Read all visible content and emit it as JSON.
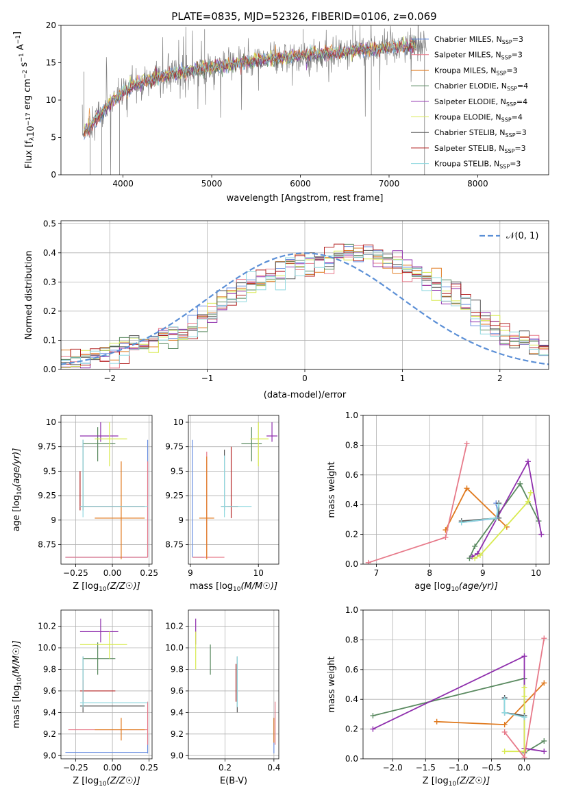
{
  "title": "PLATE=0835, MJD=52326, FIBERID=0106, z=0.069",
  "colors": {
    "Chabrier MILES": "#6a8fe0",
    "Salpeter MILES": "#e77a8a",
    "Kroupa MILES": "#e07a1f",
    "Chabrier ELODIE": "#5a8a60",
    "Salpeter ELODIE": "#8f2fad",
    "Kroupa ELODIE": "#d8ea50",
    "Chabrier STELIB": "#555555",
    "Salpeter STELIB": "#b22222",
    "Kroupa STELIB": "#8fd8df",
    "data": "#808080",
    "gaussian": "#5b8fd6"
  },
  "legend": [
    {
      "pre": "Chabrier MILES, N",
      "sub": "SSP",
      "post": "=3"
    },
    {
      "pre": "Salpeter MILES, N",
      "sub": "SSP",
      "post": "=3"
    },
    {
      "pre": "Kroupa MILES, N",
      "sub": "SSP",
      "post": "=3"
    },
    {
      "pre": "Chabrier ELODIE, N",
      "sub": "SSP",
      "post": "=4"
    },
    {
      "pre": "Salpeter ELODIE, N",
      "sub": "SSP",
      "post": "=4"
    },
    {
      "pre": "Kroupa ELODIE, N",
      "sub": "SSP",
      "post": "=4"
    },
    {
      "pre": "Chabrier STELIB, N",
      "sub": "SSP",
      "post": "=3"
    },
    {
      "pre": "Salpeter STELIB, N",
      "sub": "SSP",
      "post": "=3"
    },
    {
      "pre": "Kroupa STELIB, N",
      "sub": "SSP",
      "post": "=3"
    }
  ],
  "hist_legend": "𝒩(0, 1)",
  "chart_data": [
    {
      "id": "spectrum",
      "type": "line",
      "xlabel": "wavelength [Angstrom, rest frame]",
      "ylabel": "Flux [f_λ 10^-17 erg cm^-2 s^-1 A^-1]",
      "xlim": [
        3300,
        8800
      ],
      "ylim": [
        0,
        20
      ],
      "xticks": [
        4000,
        5000,
        6000,
        7000,
        8000
      ],
      "yticks": [
        0,
        5,
        10,
        15,
        20
      ],
      "continuum": {
        "x": [
          3550,
          3700,
          3850,
          4000,
          4200,
          4500,
          5000,
          5500,
          6000,
          6500,
          7000,
          7400
        ],
        "y": [
          5.5,
          7.5,
          9.5,
          11.0,
          12.3,
          13.4,
          14.4,
          15.3,
          15.9,
          16.5,
          17.0,
          17.3
        ]
      },
      "spikes": [
        {
          "x": 3560,
          "y": 13.8
        },
        {
          "x": 3630,
          "y": 0
        },
        {
          "x": 3760,
          "y": 0
        },
        {
          "x": 3960,
          "y": 0
        },
        {
          "x": 4920,
          "y": 19.5
        },
        {
          "x": 6030,
          "y": 19.5
        },
        {
          "x": 6590,
          "y": 20
        },
        {
          "x": 6800,
          "y": 0
        },
        {
          "x": 7400,
          "y": 0
        }
      ],
      "grid": false
    },
    {
      "id": "residual_hist",
      "type": "histogram",
      "xlabel": "(data-model)/error",
      "ylabel": "Normed distribution",
      "xlim": [
        -2.5,
        2.5
      ],
      "ylim": [
        0,
        0.51
      ],
      "xticks": [
        -2,
        -1,
        0,
        1,
        2
      ],
      "yticks": [
        0.0,
        0.1,
        0.2,
        0.3,
        0.4,
        0.5
      ],
      "bin_width": 0.1,
      "bin_start": -2.5,
      "envelope": [
        0.03,
        0.035,
        0.05,
        0.06,
        0.06,
        0.07,
        0.08,
        0.085,
        0.09,
        0.1,
        0.11,
        0.12,
        0.13,
        0.15,
        0.17,
        0.19,
        0.22,
        0.25,
        0.28,
        0.3,
        0.31,
        0.32,
        0.33,
        0.35,
        0.36,
        0.37,
        0.38,
        0.39,
        0.4,
        0.4,
        0.4,
        0.4,
        0.39,
        0.38,
        0.37,
        0.35,
        0.33,
        0.31,
        0.29,
        0.27,
        0.25,
        0.22,
        0.19,
        0.16,
        0.14,
        0.12,
        0.11,
        0.1,
        0.08,
        0.07,
        0.06,
        0.05,
        0.05,
        0.045,
        0.04,
        0.035,
        0.03,
        0.03,
        0.025,
        0.02
      ],
      "grid": true
    },
    {
      "id": "age_vs_Z",
      "type": "errorbar",
      "xlabel": "Z [log10(Z/Z☉)]",
      "ylabel": "age [log10(age/yr)]",
      "xlim": [
        -0.35,
        0.27
      ],
      "ylim": [
        8.55,
        10.07
      ],
      "xticks": [
        -0.25,
        0.0,
        0.25
      ],
      "yticks": [
        8.75,
        9.0,
        9.25,
        9.5,
        9.75,
        10.0
      ],
      "xticklabels": [
        "−0.25",
        "0.00",
        "0.25"
      ],
      "points": [
        {
          "c": "Chabrier MILES",
          "x": 0.24,
          "y": 8.62,
          "xl": -0.32,
          "xh": 0.24,
          "yl": 8.62,
          "yh": 9.82
        },
        {
          "c": "Salpeter MILES",
          "x": 0.24,
          "y": 8.62,
          "xl": -0.32,
          "xh": 0.24,
          "yl": 8.62,
          "yh": 9.6
        },
        {
          "c": "Kroupa MILES",
          "x": 0.06,
          "y": 9.02,
          "xl": -0.12,
          "xh": 0.22,
          "yl": 8.6,
          "yh": 9.6
        },
        {
          "c": "Chabrier ELODIE",
          "x": -0.1,
          "y": 9.78,
          "xl": -0.2,
          "xh": 0.02,
          "yl": 9.6,
          "yh": 9.95
        },
        {
          "c": "Salpeter ELODIE",
          "x": -0.08,
          "y": 9.86,
          "xl": -0.22,
          "xh": 0.04,
          "yl": 9.8,
          "yh": 10.0
        },
        {
          "c": "Kroupa ELODIE",
          "x": -0.02,
          "y": 9.83,
          "xl": -0.12,
          "xh": 0.1,
          "yl": 9.55,
          "yh": 10.0
        },
        {
          "c": "Chabrier STELIB",
          "x": -0.2,
          "y": 9.14,
          "xl": -0.22,
          "xh": 0.22,
          "yl": 9.1,
          "yh": 9.82
        },
        {
          "c": "Salpeter STELIB",
          "x": -0.22,
          "y": 9.14,
          "xl": -0.22,
          "xh": 0.22,
          "yl": 9.1,
          "yh": 9.5
        },
        {
          "c": "Kroupa STELIB",
          "x": -0.2,
          "y": 9.14,
          "xl": -0.22,
          "xh": 0.24,
          "yl": 9.03,
          "yh": 9.82
        }
      ],
      "grid": true
    },
    {
      "id": "age_vs_mass",
      "type": "errorbar",
      "xlabel": "mass [log10(M/M☉)]",
      "ylabel": "",
      "xlim": [
        8.97,
        10.3
      ],
      "ylim": [
        8.55,
        10.07
      ],
      "xticks": [
        9,
        10
      ],
      "yticks": [
        8.75,
        9.0,
        9.25,
        9.5,
        9.75,
        10.0
      ],
      "points": [
        {
          "c": "Chabrier MILES",
          "x": 9.03,
          "y": 8.62,
          "xl": 9.03,
          "xh": 9.2,
          "yl": 8.62,
          "yh": 9.82
        },
        {
          "c": "Salpeter MILES",
          "x": 9.24,
          "y": 8.62,
          "xl": 9.03,
          "xh": 9.5,
          "yl": 8.62,
          "yh": 9.7
        },
        {
          "c": "Kroupa MILES",
          "x": 9.24,
          "y": 9.02,
          "xl": 9.13,
          "xh": 9.35,
          "yl": 8.6,
          "yh": 9.65
        },
        {
          "c": "Chabrier ELODIE",
          "x": 9.9,
          "y": 9.78,
          "xl": 9.75,
          "xh": 10.05,
          "yl": 9.6,
          "yh": 9.95
        },
        {
          "c": "Salpeter ELODIE",
          "x": 10.2,
          "y": 9.86,
          "xl": 10.12,
          "xh": 10.28,
          "yl": 9.8,
          "yh": 10.0
        },
        {
          "c": "Kroupa ELODIE",
          "x": 10.0,
          "y": 9.83,
          "xl": 9.88,
          "xh": 10.15,
          "yl": 9.55,
          "yh": 10.0
        },
        {
          "c": "Chabrier STELIB",
          "x": 9.5,
          "y": 9.14,
          "xl": 9.45,
          "xh": 9.7,
          "yl": 9.1,
          "yh": 9.72
        },
        {
          "c": "Salpeter STELIB",
          "x": 9.6,
          "y": 9.14,
          "xl": 9.55,
          "xh": 9.7,
          "yl": 9.02,
          "yh": 9.75
        },
        {
          "c": "Kroupa STELIB",
          "x": 9.5,
          "y": 9.14,
          "xl": 9.45,
          "xh": 9.9,
          "yl": 9.03,
          "yh": 9.66
        }
      ],
      "grid": true
    },
    {
      "id": "weight_vs_age",
      "type": "line",
      "xlabel": "age [log10(age/yr)]",
      "ylabel": "mass weight",
      "xlim": [
        6.75,
        10.25
      ],
      "ylim": [
        0.0,
        1.0
      ],
      "xticks": [
        7,
        8,
        9,
        10
      ],
      "yticks": [
        0.0,
        0.2,
        0.4,
        0.6,
        0.8,
        1.0
      ],
      "series": [
        {
          "c": "Kroupa MILES",
          "x": [
            8.3,
            8.7,
            9.45
          ],
          "y": [
            0.23,
            0.51,
            0.25
          ]
        },
        {
          "c": "Chabrier ELODIE",
          "x": [
            8.75,
            8.85,
            9.7,
            10.05
          ],
          "y": [
            0.04,
            0.12,
            0.54,
            0.29
          ]
        },
        {
          "c": "Salpeter ELODIE",
          "x": [
            8.8,
            8.9,
            9.85,
            10.1
          ],
          "y": [
            0.05,
            0.07,
            0.69,
            0.2
          ]
        },
        {
          "c": "Kroupa ELODIE",
          "x": [
            8.85,
            8.95,
            9.85,
            9.9
          ],
          "y": [
            0.04,
            0.06,
            0.42,
            0.48
          ]
        },
        {
          "c": "Chabrier MILES",
          "x": [
            8.6,
            9.3,
            9.25
          ],
          "y": [
            0.28,
            0.31,
            0.41
          ]
        },
        {
          "c": "Chabrier STELIB",
          "x": [
            8.6,
            9.3,
            9.3
          ],
          "y": [
            0.29,
            0.31,
            0.41
          ]
        },
        {
          "c": "Kroupa STELIB",
          "x": [
            8.6,
            9.25,
            9.3
          ],
          "y": [
            0.28,
            0.31,
            0.4
          ]
        },
        {
          "c": "Salpeter MILES",
          "x": [
            6.85,
            8.3,
            8.7
          ],
          "y": [
            0.01,
            0.18,
            0.81
          ]
        }
      ],
      "grid": true
    },
    {
      "id": "mass_vs_Z",
      "type": "errorbar",
      "xlabel": "Z [log10(Z/Z☉)]",
      "ylabel": "mass [log10(M/M☉)]",
      "xlim": [
        -0.35,
        0.27
      ],
      "ylim": [
        8.97,
        10.35
      ],
      "xticks": [
        -0.25,
        0.0,
        0.25
      ],
      "yticks": [
        9.0,
        9.2,
        9.4,
        9.6,
        9.8,
        10.0,
        10.2
      ],
      "xticklabels": [
        "−0.25",
        "0.00",
        "0.25"
      ],
      "points": [
        {
          "c": "Chabrier MILES",
          "x": 0.24,
          "y": 9.03,
          "xl": -0.32,
          "xh": 0.24,
          "yl": 9.02,
          "yh": 9.2
        },
        {
          "c": "Salpeter MILES",
          "x": 0.24,
          "y": 9.24,
          "xl": -0.3,
          "xh": 0.24,
          "yl": 9.1,
          "yh": 9.5
        },
        {
          "c": "Kroupa MILES",
          "x": 0.06,
          "y": 9.24,
          "xl": -0.12,
          "xh": 0.22,
          "yl": 9.14,
          "yh": 9.35
        },
        {
          "c": "Chabrier ELODIE",
          "x": -0.1,
          "y": 9.9,
          "xl": -0.2,
          "xh": 0.02,
          "yl": 9.75,
          "yh": 10.05
        },
        {
          "c": "Salpeter ELODIE",
          "x": -0.08,
          "y": 10.15,
          "xl": -0.22,
          "xh": 0.04,
          "yl": 10.05,
          "yh": 10.27
        },
        {
          "c": "Kroupa ELODIE",
          "x": -0.02,
          "y": 10.03,
          "xl": -0.22,
          "xh": 0.1,
          "yl": 9.9,
          "yh": 10.15
        },
        {
          "c": "Chabrier STELIB",
          "x": -0.2,
          "y": 9.46,
          "xl": -0.22,
          "xh": 0.22,
          "yl": 9.4,
          "yh": 9.92
        },
        {
          "c": "Salpeter STELIB",
          "x": -0.2,
          "y": 9.6,
          "xl": -0.22,
          "xh": 0.02,
          "yl": 9.5,
          "yh": 9.7
        },
        {
          "c": "Kroupa STELIB",
          "x": -0.2,
          "y": 9.49,
          "xl": -0.22,
          "xh": 0.24,
          "yl": 9.45,
          "yh": 9.92
        }
      ],
      "grid": true
    },
    {
      "id": "mass_vs_EBV",
      "type": "errorbar",
      "xlabel": "E(B-V)",
      "ylabel": "",
      "xlim": [
        0.05,
        0.42
      ],
      "ylim": [
        8.97,
        10.35
      ],
      "xticks": [
        0.2,
        0.4
      ],
      "yticks": [
        9.0,
        9.2,
        9.4,
        9.6,
        9.8,
        10.0,
        10.2
      ],
      "points": [
        {
          "c": "Chabrier MILES",
          "x": 0.4,
          "y": 9.12,
          "xl": 0.4,
          "xh": 0.4,
          "yl": 9.02,
          "yh": 9.35
        },
        {
          "c": "Salpeter MILES",
          "x": 0.405,
          "y": 9.24,
          "xl": 0.405,
          "xh": 0.405,
          "yl": 9.1,
          "yh": 9.5
        },
        {
          "c": "Kroupa MILES",
          "x": 0.4,
          "y": 9.24,
          "xl": 0.4,
          "xh": 0.4,
          "yl": 9.12,
          "yh": 9.35
        },
        {
          "c": "Chabrier ELODIE",
          "x": 0.14,
          "y": 9.9,
          "xl": 0.14,
          "xh": 0.14,
          "yl": 9.75,
          "yh": 10.03
        },
        {
          "c": "Salpeter ELODIE",
          "x": 0.08,
          "y": 10.15,
          "xl": 0.08,
          "xh": 0.08,
          "yl": 10.03,
          "yh": 10.27
        },
        {
          "c": "Kroupa ELODIE",
          "x": 0.08,
          "y": 10.03,
          "xl": 0.08,
          "xh": 0.08,
          "yl": 9.8,
          "yh": 10.15
        },
        {
          "c": "Chabrier STELIB",
          "x": 0.25,
          "y": 9.46,
          "xl": 0.25,
          "xh": 0.25,
          "yl": 9.4,
          "yh": 9.92
        },
        {
          "c": "Salpeter STELIB",
          "x": 0.245,
          "y": 9.6,
          "xl": 0.245,
          "xh": 0.245,
          "yl": 9.5,
          "yh": 9.85
        },
        {
          "c": "Kroupa STELIB",
          "x": 0.25,
          "y": 9.49,
          "xl": 0.25,
          "xh": 0.25,
          "yl": 9.45,
          "yh": 9.92
        }
      ],
      "grid": true
    },
    {
      "id": "weight_vs_Z",
      "type": "line",
      "xlabel": "Z [log10(Z/Z☉)]",
      "ylabel": "mass weight",
      "xlim": [
        -2.45,
        0.38
      ],
      "ylim": [
        0.0,
        1.0
      ],
      "xticks": [
        -2.0,
        -1.5,
        -1.0,
        -0.5,
        0.0
      ],
      "yticks": [
        0.0,
        0.2,
        0.4,
        0.6,
        0.8,
        1.0
      ],
      "xticklabels": [
        "−2.0",
        "−1.5",
        "−1.0",
        "−0.5",
        "0.0"
      ],
      "series": [
        {
          "c": "Kroupa MILES",
          "x": [
            -1.33,
            -0.3,
            0.3
          ],
          "y": [
            0.25,
            0.23,
            0.51
          ]
        },
        {
          "c": "Chabrier ELODIE",
          "x": [
            -2.3,
            0.0,
            0.0,
            0.3
          ],
          "y": [
            0.29,
            0.54,
            0.04,
            0.12
          ]
        },
        {
          "c": "Salpeter ELODIE",
          "x": [
            -2.3,
            0.0,
            0.0,
            0.3
          ],
          "y": [
            0.2,
            0.69,
            0.07,
            0.05
          ]
        },
        {
          "c": "Kroupa ELODIE",
          "x": [
            -0.3,
            0.0,
            0.0,
            0.0
          ],
          "y": [
            0.05,
            0.05,
            0.42,
            0.48
          ]
        },
        {
          "c": "Chabrier MILES",
          "x": [
            -0.3,
            -0.3,
            0.0
          ],
          "y": [
            0.41,
            0.31,
            0.28
          ]
        },
        {
          "c": "Chabrier STELIB",
          "x": [
            -0.3,
            -0.3,
            0.0
          ],
          "y": [
            0.41,
            0.31,
            0.29
          ]
        },
        {
          "c": "Kroupa STELIB",
          "x": [
            -0.3,
            -0.3,
            0.0
          ],
          "y": [
            0.4,
            0.31,
            0.28
          ]
        },
        {
          "c": "Salpeter MILES",
          "x": [
            -0.3,
            0.0,
            0.3
          ],
          "y": [
            0.18,
            0.01,
            0.81
          ]
        }
      ],
      "grid": true
    }
  ]
}
